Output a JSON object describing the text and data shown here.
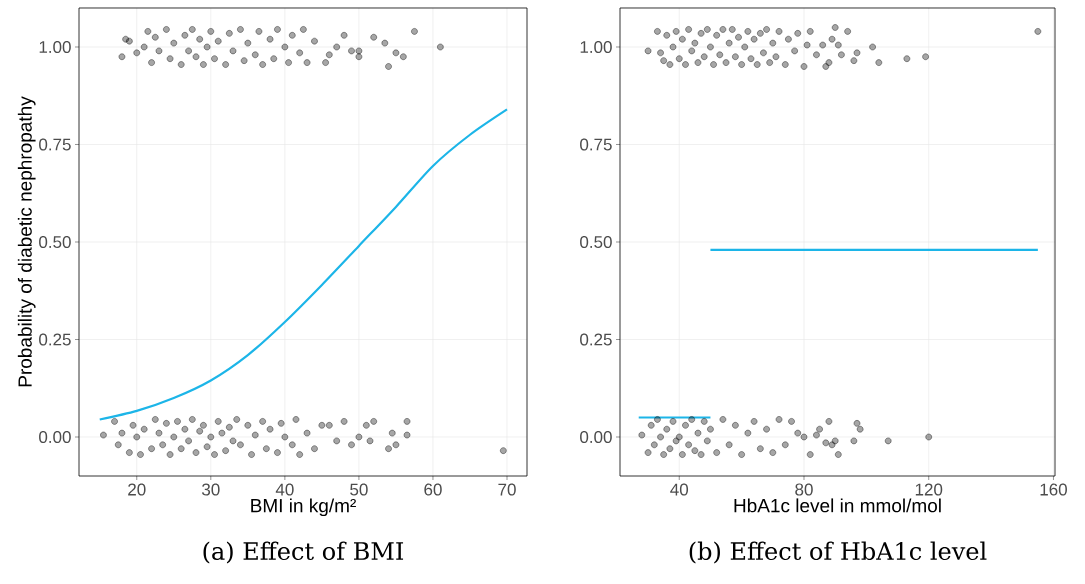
{
  "chart_data": [
    {
      "type": "scatter",
      "title": "(a) Effect of BMI",
      "xlabel": "BMI in kg/m²",
      "ylabel": "Probability of diabetic nephropathy",
      "xlim": [
        12.2,
        72.7
      ],
      "ylim": [
        -0.1,
        1.1
      ],
      "xticks": [
        20,
        30,
        40,
        50,
        60,
        70
      ],
      "yticks": [
        {
          "value": 0,
          "label": "0.00"
        },
        {
          "value": 0.25,
          "label": "0.25"
        },
        {
          "value": 0.5,
          "label": "0.50"
        },
        {
          "value": 0.75,
          "label": "0.75"
        },
        {
          "value": 1,
          "label": "1.00"
        }
      ],
      "grid": true,
      "series": [
        {
          "color": "#000000",
          "x": [
            18,
            18.5,
            19,
            20,
            21,
            21.5,
            22,
            22.5,
            23,
            24,
            24.5,
            25,
            26,
            26.5,
            27,
            27.5,
            28,
            28.5,
            29,
            29.5,
            30,
            30.5,
            31,
            32,
            32.5,
            33,
            34,
            34.5,
            35,
            36,
            36.5,
            37,
            38,
            38.5,
            39,
            40,
            40.5,
            41,
            42,
            42.5,
            43,
            44,
            45.5,
            46,
            47,
            48,
            49,
            50,
            50,
            52,
            53.5,
            54,
            55,
            56,
            57.5,
            61,
            15.5,
            17,
            17.5,
            18,
            19,
            19.5,
            20,
            20.5,
            21,
            22,
            22.5,
            23,
            23.5,
            24,
            24.5,
            25,
            25.5,
            26,
            26.5,
            27,
            27.5,
            28,
            28.5,
            29,
            29.5,
            30,
            30.5,
            31,
            31.5,
            32,
            32.5,
            33,
            33.5,
            34,
            35,
            35.5,
            36,
            37,
            37.5,
            38,
            39,
            39.5,
            40,
            41,
            41.5,
            42,
            43,
            44,
            45,
            46,
            47,
            48,
            49,
            50,
            51,
            51.5,
            52,
            54,
            54.5,
            55,
            56.5,
            56.5,
            69.5
          ],
          "values": [
            0.975,
            1.02,
            1.015,
            0.985,
            1.0,
            1.04,
            0.96,
            1.025,
            0.99,
            1.045,
            0.97,
            1.01,
            0.955,
            1.03,
            0.99,
            1.045,
            0.975,
            1.02,
            0.955,
            1.0,
            1.04,
            0.97,
            1.015,
            0.955,
            1.035,
            0.99,
            1.045,
            0.965,
            1.01,
            0.98,
            1.04,
            0.955,
            1.02,
            0.97,
            1.045,
            1.0,
            0.96,
            1.03,
            0.985,
            1.045,
            0.96,
            1.015,
            0.96,
            0.98,
            1.0,
            1.03,
            0.99,
            0.975,
            0.99,
            1.025,
            1.01,
            0.95,
            0.985,
            0.975,
            1.04,
            1.0,
            0.005,
            0.04,
            -0.02,
            0.01,
            -0.04,
            0.03,
            0.0,
            -0.045,
            0.02,
            -0.03,
            0.045,
            0.01,
            -0.02,
            0.035,
            -0.045,
            0.0,
            0.04,
            -0.03,
            0.02,
            -0.01,
            0.045,
            -0.04,
            0.015,
            0.03,
            -0.025,
            0.0,
            -0.045,
            0.04,
            0.01,
            -0.035,
            0.025,
            -0.01,
            0.045,
            -0.02,
            0.03,
            -0.045,
            0.005,
            0.04,
            -0.03,
            0.02,
            -0.04,
            0.035,
            0.0,
            -0.02,
            0.045,
            -0.045,
            0.01,
            -0.03,
            0.03,
            0.03,
            -0.01,
            0.04,
            -0.02,
            0.0,
            0.03,
            -0.01,
            0.04,
            -0.03,
            0.01,
            -0.02,
            0.04,
            0.005,
            -0.035
          ]
        },
        {
          "type": "line",
          "marker": "none",
          "color": "#1cb5e8",
          "x": [
            15,
            20,
            25,
            30,
            35,
            40,
            45,
            50,
            55,
            60,
            65,
            70
          ],
          "values": [
            0.045,
            0.067,
            0.1,
            0.145,
            0.21,
            0.295,
            0.39,
            0.49,
            0.59,
            0.695,
            0.775,
            0.84
          ]
        }
      ]
    },
    {
      "type": "scatter",
      "title": "(b) Effect of HbA1c level",
      "xlabel": "HbA1c level in mmol/mol",
      "xlim": [
        21,
        160.5
      ],
      "ylim": [
        -0.1,
        1.1
      ],
      "xticks": [
        40,
        80,
        120,
        160
      ],
      "yticks": [
        {
          "value": 0,
          "label": "0.00"
        },
        {
          "value": 0.25,
          "label": "0.25"
        },
        {
          "value": 0.5,
          "label": "0.50"
        },
        {
          "value": 0.75,
          "label": "0.75"
        },
        {
          "value": 1,
          "label": "1.00"
        }
      ],
      "grid": true,
      "series": [
        {
          "color": "#000000",
          "x": [
            30,
            33,
            34,
            35,
            36,
            37,
            38,
            39,
            40,
            41,
            42,
            43,
            44,
            45,
            46,
            47,
            48,
            49,
            50,
            51,
            52,
            53,
            54,
            55,
            56,
            57,
            58,
            59,
            60,
            61,
            62,
            63,
            64,
            65,
            66,
            67,
            68,
            69,
            70,
            71,
            72,
            74,
            75,
            77,
            78,
            80,
            81,
            82,
            84,
            86,
            87,
            88,
            89,
            90,
            91,
            92,
            94,
            96,
            97,
            102,
            104,
            113,
            119,
            155,
            28,
            30,
            31,
            32,
            33,
            34,
            35,
            36,
            37,
            38,
            39,
            40,
            41,
            42,
            43,
            44,
            45,
            46,
            47,
            48,
            49,
            50,
            52,
            54,
            56,
            58,
            60,
            62,
            64,
            66,
            68,
            70,
            72,
            74,
            76,
            78,
            80,
            82,
            84,
            85,
            87,
            88,
            89,
            90,
            91,
            96,
            97,
            98,
            107,
            120
          ],
          "values": [
            0.99,
            1.04,
            0.985,
            0.965,
            1.03,
            0.955,
            1.0,
            1.04,
            0.97,
            1.02,
            0.955,
            1.045,
            0.99,
            1.01,
            0.96,
            1.035,
            0.975,
            1.045,
            1.0,
            0.955,
            1.03,
            0.98,
            1.045,
            0.96,
            1.01,
            1.045,
            0.975,
            1.025,
            0.955,
            1.0,
            1.04,
            0.97,
            1.02,
            0.955,
            1.035,
            0.985,
            1.045,
            0.96,
            1.01,
            0.975,
            1.04,
            0.955,
            1.02,
            0.99,
            1.035,
            0.95,
            1.005,
            1.04,
            0.98,
            1.005,
            0.95,
            0.96,
            1.02,
            1.05,
            1.005,
            0.98,
            1.04,
            0.965,
            0.985,
            1.0,
            0.96,
            0.97,
            0.975,
            1.04,
            0.005,
            -0.04,
            0.03,
            -0.02,
            0.045,
            0.0,
            -0.045,
            0.02,
            -0.03,
            0.04,
            -0.01,
            0.0,
            -0.045,
            0.03,
            -0.02,
            0.045,
            -0.035,
            0.01,
            -0.045,
            0.04,
            -0.01,
            0.02,
            -0.04,
            0.045,
            -0.02,
            0.03,
            -0.045,
            0.01,
            0.04,
            -0.03,
            0.02,
            -0.04,
            0.045,
            -0.02,
            0.04,
            0.01,
            0.0,
            -0.045,
            0.005,
            0.02,
            -0.015,
            0.04,
            -0.02,
            -0.01,
            -0.045,
            -0.01,
            0.035,
            0.02,
            -0.01,
            0.0
          ]
        },
        {
          "type": "line",
          "marker": "none",
          "color": "#1cb5e8",
          "x": [
            27,
            50
          ],
          "values": [
            0.05,
            0.05
          ]
        },
        {
          "type": "line",
          "marker": "none",
          "color": "#1cb5e8",
          "x": [
            50,
            155
          ],
          "values": [
            0.48,
            0.48
          ]
        }
      ]
    }
  ]
}
